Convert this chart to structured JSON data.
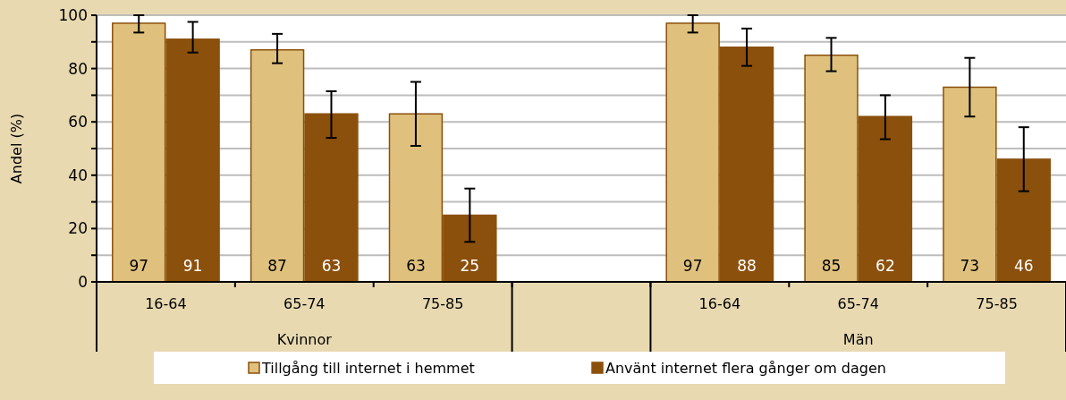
{
  "chart_data": {
    "type": "bar",
    "ylabel": "Andel (%)",
    "categories": [
      "16-64",
      "65-74",
      "75-85",
      null,
      "16-64",
      "65-74",
      "75-85"
    ],
    "series": [
      {
        "name": "Tillgång till internet i hemmet",
        "color": "#dfc17d",
        "values": [
          97,
          87,
          63,
          null,
          97,
          85,
          73
        ],
        "errors": [
          [
            93.5,
            100
          ],
          [
            82,
            93
          ],
          [
            51,
            75
          ],
          null,
          [
            93.5,
            100
          ],
          [
            79,
            91.5
          ],
          [
            62,
            84
          ]
        ]
      },
      {
        "name": "Använt internet flera gånger om dagen",
        "color": "#8b500c",
        "values": [
          91,
          63,
          25,
          null,
          88,
          62,
          46
        ],
        "errors": [
          [
            86,
            97.5
          ],
          [
            54,
            71.5
          ],
          [
            15,
            35
          ],
          null,
          [
            81,
            95
          ],
          [
            53.5,
            70
          ],
          [
            34,
            58
          ]
        ]
      }
    ],
    "annotations": [
      "Kvinnor",
      "Män"
    ],
    "ylim": [
      0,
      100
    ],
    "yticks": [
      0,
      {
        "value": 10,
        "label": null
      },
      20,
      {
        "value": 30,
        "label": null
      },
      40,
      {
        "value": 50,
        "label": null
      },
      60,
      {
        "value": 70,
        "label": null
      },
      80,
      {
        "value": 90,
        "label": null
      },
      100
    ],
    "grid": true,
    "data_labels": true,
    "legend": "bottom"
  }
}
